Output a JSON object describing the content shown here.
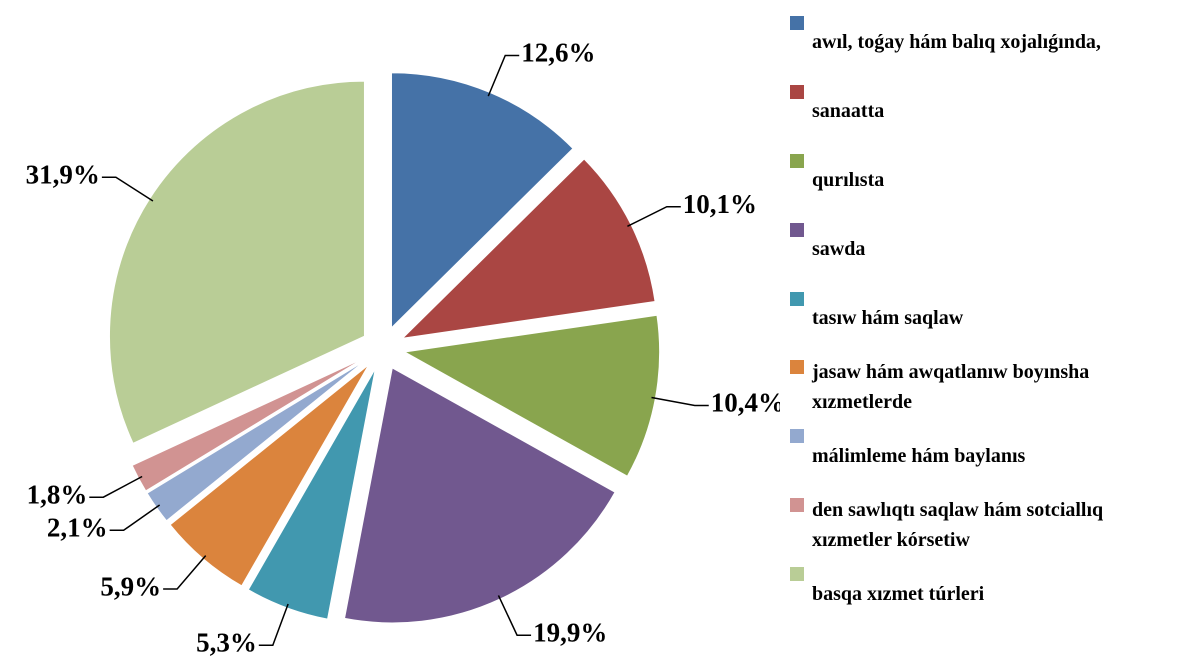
{
  "chart_data": {
    "type": "pie",
    "categories": [
      "awıl, toǵay hám balıq xojalıǵında,",
      "sanaatta",
      "qurılısta",
      "sawda",
      "tasıw hám saqlaw",
      "jasaw hám awqatlanıw boyınsha xızmetlerde",
      "málimleme hám baylanıs",
      "den sawlıqtı saqlaw hám sotciallıq xızmetler kórsetiw",
      "basqa xızmet túrleri"
    ],
    "values": [
      12.6,
      10.1,
      10.4,
      19.9,
      5.3,
      5.9,
      2.1,
      1.8,
      31.9
    ],
    "value_labels": [
      "12,6%",
      "10,1%",
      "10,4%",
      "19,9%",
      "5,3%",
      "5,9%",
      "2,1%",
      "1,8%",
      "31,9%"
    ],
    "colors": [
      "#4572a7",
      "#aa4643",
      "#89a54e",
      "#71588f",
      "#4198af",
      "#db843d",
      "#93a9cf",
      "#d19392",
      "#b9cd96"
    ],
    "legend": "right"
  }
}
